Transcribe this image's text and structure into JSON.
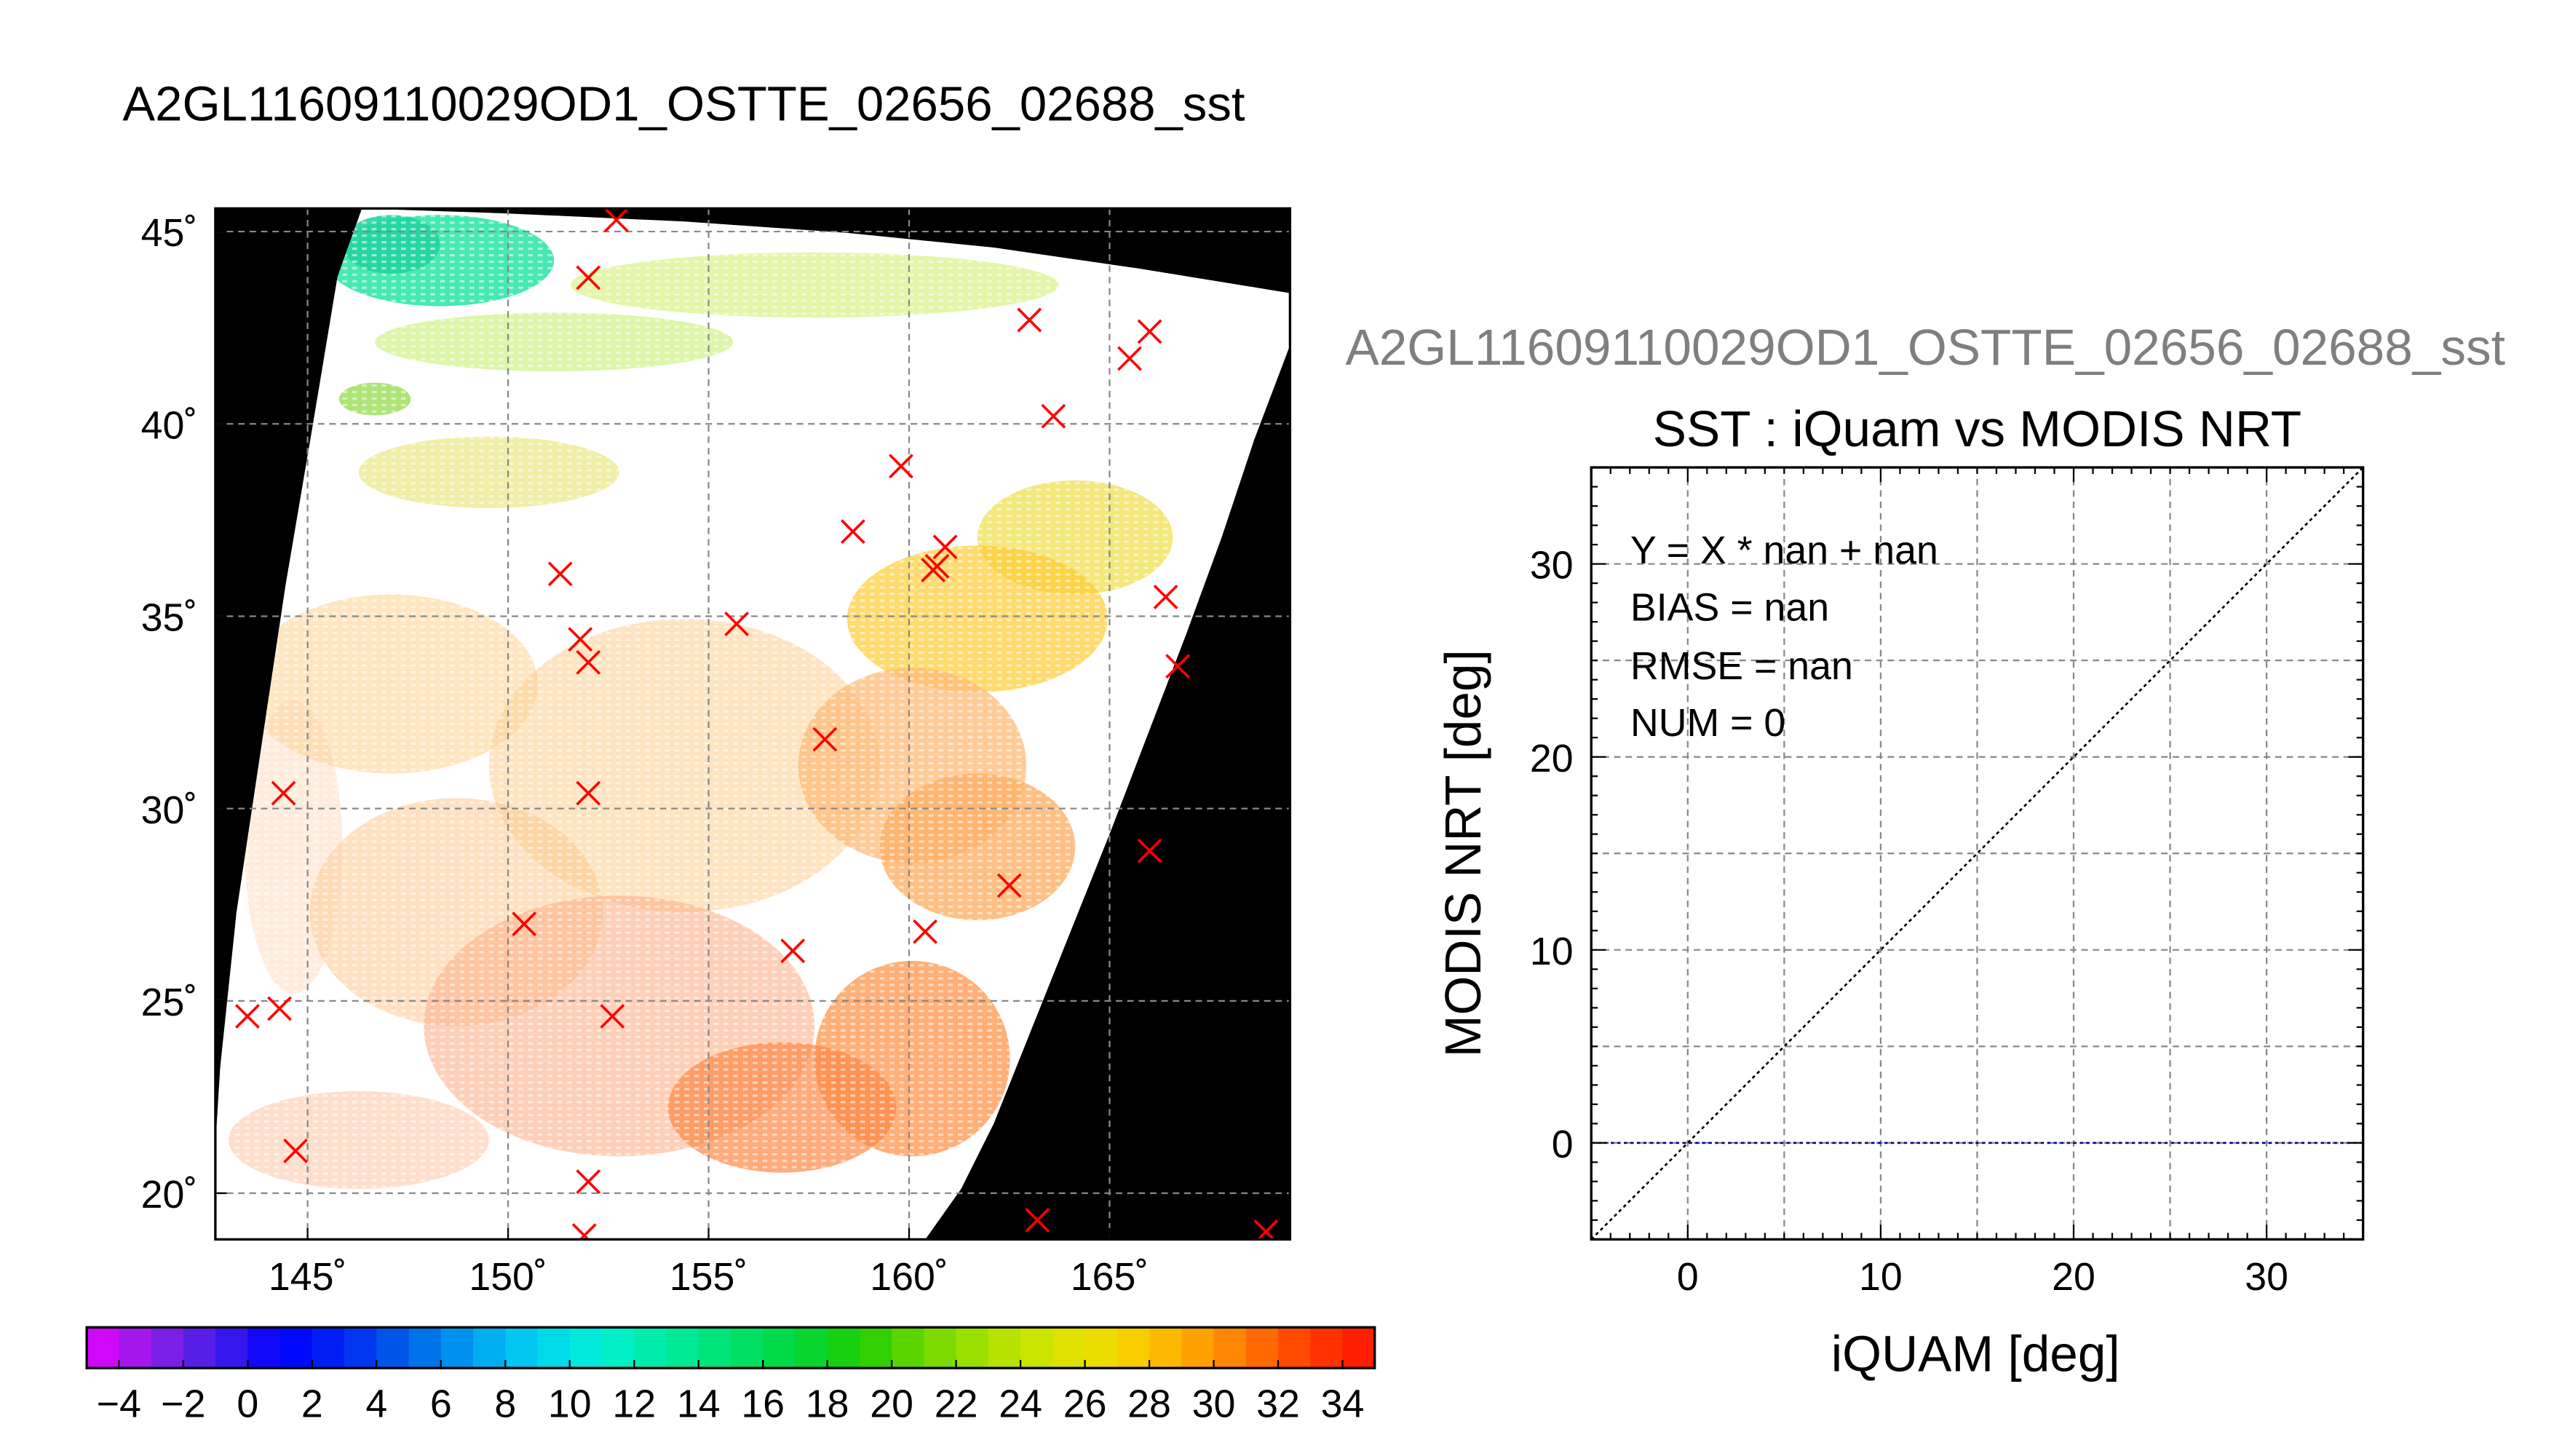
{
  "figure_title": "A2GL11609110029OD1_OSTTE_02656_02688_sst",
  "colors": {
    "background": "#ffffff",
    "land_mask": "#000000",
    "match_marker": "#ff0000",
    "zero_line": "#00008b",
    "identity_line": "#000000"
  },
  "chart_data": [
    {
      "type": "map",
      "title": "",
      "xlabel": "",
      "ylabel": "",
      "x_ticks": [
        "145˚",
        "150˚",
        "155˚",
        "160˚",
        "165˚"
      ],
      "x_tick_values": [
        145,
        150,
        155,
        160,
        165
      ],
      "y_ticks": [
        "20˚",
        "25˚",
        "30˚",
        "35˚",
        "40˚",
        "45˚"
      ],
      "y_tick_values": [
        20,
        25,
        30,
        35,
        40,
        45
      ],
      "xlim": [
        142.7,
        169.5
      ],
      "ylim": [
        18.8,
        45.6
      ],
      "grid": true,
      "match_points": [
        [
          152.7,
          45.3
        ],
        [
          152.0,
          43.8
        ],
        [
          163.0,
          42.7
        ],
        [
          166.0,
          42.4
        ],
        [
          165.5,
          41.7
        ],
        [
          163.6,
          40.2
        ],
        [
          159.8,
          38.9
        ],
        [
          158.6,
          37.2
        ],
        [
          160.9,
          36.8
        ],
        [
          160.7,
          36.3
        ],
        [
          160.6,
          36.2
        ],
        [
          151.3,
          36.1
        ],
        [
          166.4,
          35.5
        ],
        [
          155.7,
          34.8
        ],
        [
          151.8,
          34.4
        ],
        [
          152.0,
          33.8
        ],
        [
          166.7,
          33.7
        ],
        [
          157.9,
          31.8
        ],
        [
          152.0,
          30.4
        ],
        [
          144.4,
          30.4
        ],
        [
          166.0,
          28.9
        ],
        [
          162.5,
          28.0
        ],
        [
          150.4,
          27.0
        ],
        [
          160.4,
          26.8
        ],
        [
          157.1,
          26.3
        ],
        [
          152.6,
          24.6
        ],
        [
          143.5,
          24.6
        ],
        [
          144.3,
          24.8
        ],
        [
          144.7,
          21.1
        ],
        [
          152.0,
          20.3
        ],
        [
          163.2,
          19.3
        ],
        [
          151.9,
          18.9
        ],
        [
          168.9,
          19.0
        ]
      ]
    },
    {
      "type": "colorbar",
      "tick_labels": [
        "−4",
        "−2",
        "0",
        "2",
        "4",
        "6",
        "8",
        "10",
        "12",
        "14",
        "16",
        "18",
        "20",
        "22",
        "24",
        "26",
        "28",
        "30",
        "32",
        "34"
      ],
      "min": -5,
      "max": 35,
      "step": 1
    },
    {
      "type": "scatter",
      "subtitle": "A2GL11609110029OD1_OSTTE_02656_02688_sst",
      "title": "SST : iQuam vs MODIS NRT",
      "xlabel": "iQUAM [deg]",
      "ylabel": "MODIS NRT [deg]",
      "xlim": [
        -5,
        35
      ],
      "ylim": [
        -5,
        35
      ],
      "x_ticks": [
        0,
        10,
        20,
        30
      ],
      "y_ticks": [
        0,
        10,
        20,
        30
      ],
      "grid": true,
      "points": [],
      "lines": [
        {
          "type": "identity",
          "slope": 1,
          "intercept": 0
        },
        {
          "type": "zero",
          "y": 0
        }
      ],
      "stats": {
        "equation": "Y = X * nan + nan",
        "bias": "BIAS = nan",
        "rmse": "RMSE = nan",
        "num": "NUM = 0"
      }
    }
  ]
}
